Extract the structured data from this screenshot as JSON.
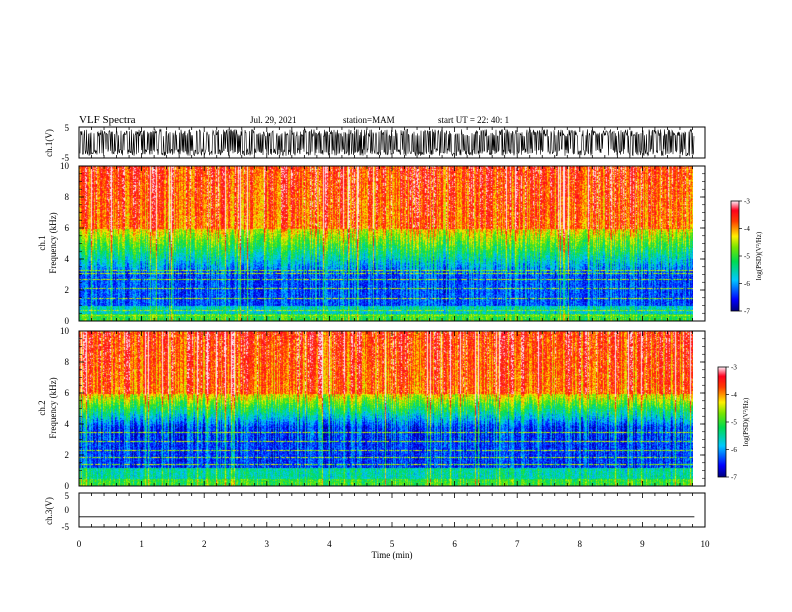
{
  "header": {
    "title": "VLF Spectra",
    "date": "Jul. 29, 2021",
    "station": "station=MAM",
    "start_ut": "start UT = 22: 40: 1"
  },
  "chart_data": [
    {
      "type": "line",
      "panel": "waveform-ch1",
      "ylabel": "ch.1(V)",
      "ylim": [
        -5,
        5
      ],
      "yticks": [
        "5",
        "-5"
      ],
      "xlim": [
        0,
        10
      ],
      "signal": "dense noise waveform, roughly -4 to 4 V"
    },
    {
      "type": "heatmap",
      "panel": "spectrogram-ch1",
      "ylabel": "ch.1",
      "ylabel2": "Frequency (kHz)",
      "ylim": [
        0,
        10
      ],
      "yticks": [
        "0",
        "2",
        "4",
        "6",
        "8",
        "10"
      ],
      "xlim": [
        0,
        9.83
      ],
      "colorbar": {
        "label": "log(PSD)(V²/Hz)",
        "range": [
          -7,
          -3
        ],
        "ticks": [
          "-3",
          "-4",
          "-5",
          "-6",
          "-7"
        ],
        "colormap": "rainbow (blue-cyan-green-yellow-red-white)"
      },
      "features": {
        "low_band_khz": [
          1.0,
          3.0
        ],
        "low_band_level": -6.3,
        "mid_band_level": -5.3,
        "high_band_level": -3.8,
        "narrowband_lines_khz": [
          0.4,
          0.7,
          1.5,
          2.1,
          2.7,
          3.1,
          3.3
        ]
      }
    },
    {
      "type": "heatmap",
      "panel": "spectrogram-ch2",
      "ylabel": "ch.2",
      "ylabel2": "Frequency (kHz)",
      "ylim": [
        0,
        10
      ],
      "yticks": [
        "0",
        "2",
        "4",
        "6",
        "8",
        "10"
      ],
      "xlim": [
        0,
        9.83
      ],
      "colorbar": {
        "label": "log(PSD)(V²/Hz)",
        "range": [
          -7,
          -3
        ],
        "ticks": [
          "-3",
          "-4",
          "-5",
          "-6",
          "-7"
        ],
        "colormap": "rainbow (blue-cyan-green-yellow-red-white)"
      },
      "features": {
        "low_band_khz": [
          1.2,
          3.8
        ],
        "low_band_level": -6.4,
        "mid_band_level": -5.2,
        "high_band_level": -3.8,
        "narrowband_lines_khz": [
          1.4,
          1.9,
          2.3,
          2.9,
          3.5
        ]
      }
    },
    {
      "type": "line",
      "panel": "waveform-ch3",
      "ylabel": "ch.3(V)",
      "ylim": [
        -5,
        5
      ],
      "yticks": [
        "5",
        "0",
        "-5"
      ],
      "xlim": [
        0,
        10
      ],
      "x": [
        0,
        9.83
      ],
      "y": [
        -2,
        -2
      ]
    }
  ],
  "xaxis": {
    "label": "Time (min)",
    "range": [
      0,
      10
    ],
    "ticks": [
      "0",
      "1",
      "2",
      "3",
      "4",
      "5",
      "6",
      "7",
      "8",
      "9",
      "10"
    ]
  }
}
